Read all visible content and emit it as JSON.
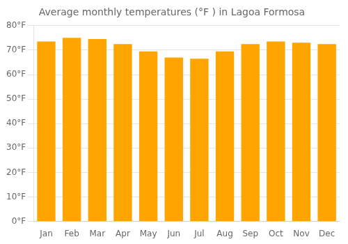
{
  "chart_data": {
    "type": "bar",
    "title": "Average monthly temperatures (°F ) in Lagoa Formosa",
    "categories": [
      "Jan",
      "Feb",
      "Mar",
      "Apr",
      "May",
      "Jun",
      "Jul",
      "Aug",
      "Sep",
      "Oct",
      "Nov",
      "Dec"
    ],
    "values": [
      73.5,
      75.0,
      74.5,
      72.5,
      69.5,
      67.0,
      66.5,
      69.5,
      72.5,
      73.5,
      73.0,
      72.5
    ],
    "color": "#FFA500",
    "ylim": [
      0,
      80
    ],
    "yticks": [
      {
        "value": 0,
        "label": "0°F"
      },
      {
        "value": 10,
        "label": "10°F"
      },
      {
        "value": 20,
        "label": "20°F"
      },
      {
        "value": 30,
        "label": "30°F"
      },
      {
        "value": 40,
        "label": "40°F"
      },
      {
        "value": 50,
        "label": "50°F"
      },
      {
        "value": 60,
        "label": "60°F"
      },
      {
        "value": 70,
        "label": "70°F"
      },
      {
        "value": 80,
        "label": "80°F"
      }
    ],
    "grid": true
  }
}
